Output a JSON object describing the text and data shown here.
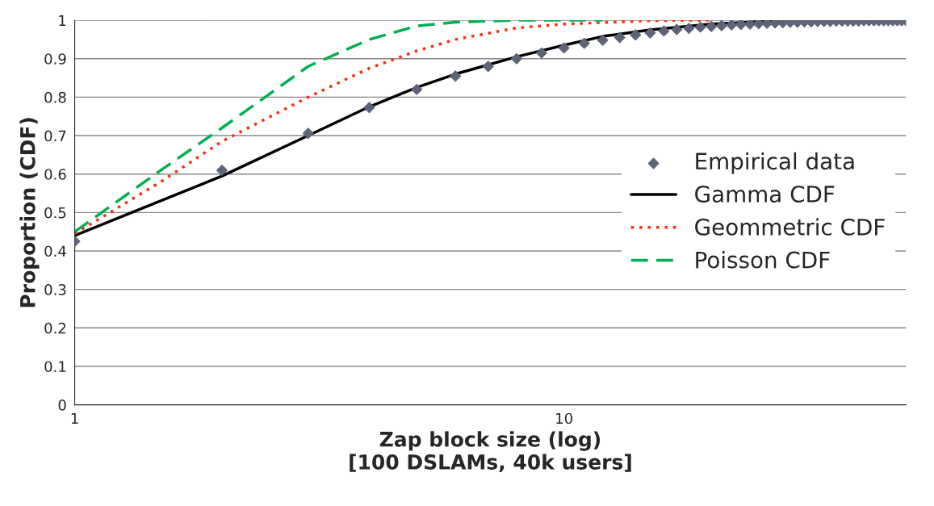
{
  "chart_data": {
    "type": "line",
    "xlabel": "Zap block size (log)\n[100 DSLAMs, 40k users]",
    "ylabel": "Proportion (CDF)",
    "log": "x",
    "xlim": [
      1,
      50
    ],
    "xticks": [
      1,
      10
    ],
    "ylim": [
      0,
      1
    ],
    "yticks": [
      0,
      0.1,
      0.2,
      0.3,
      0.4,
      0.5,
      0.6,
      0.7,
      0.8,
      0.9,
      1
    ],
    "grid": "y",
    "legend": "right",
    "series": [
      {
        "name": "Empirical data",
        "type": "scatter",
        "marker": "diamond",
        "color": "#5f6378",
        "x": [
          1,
          2,
          3,
          4,
          5,
          6,
          7,
          8,
          9,
          10,
          11,
          12,
          13,
          14,
          15,
          16,
          17,
          18,
          19,
          20,
          21,
          22,
          23,
          24,
          25,
          26,
          27,
          28,
          29,
          30,
          31,
          32,
          33,
          34,
          35,
          36,
          37,
          38,
          39,
          40,
          41,
          42,
          43,
          44,
          45,
          46,
          47,
          48,
          49,
          50
        ],
        "values": [
          0.425,
          0.61,
          0.706,
          0.773,
          0.82,
          0.855,
          0.88,
          0.9,
          0.915,
          0.928,
          0.94,
          0.948,
          0.955,
          0.962,
          0.967,
          0.972,
          0.976,
          0.979,
          0.982,
          0.984,
          0.986,
          0.988,
          0.989,
          0.99,
          0.991,
          0.992,
          0.993,
          0.994,
          0.995,
          0.995,
          0.996,
          0.996,
          0.997,
          0.997,
          0.997,
          0.998,
          0.998,
          0.998,
          0.998,
          0.998,
          0.999,
          0.999,
          0.999,
          0.999,
          0.999,
          0.999,
          0.999,
          0.999,
          0.999,
          0.999
        ]
      },
      {
        "name": "Gamma CDF",
        "line_style": "solid",
        "color": "#000000",
        "x": [
          1,
          2,
          3,
          4,
          5,
          6,
          8,
          10,
          12,
          15,
          20,
          25,
          30,
          40
        ],
        "values": [
          0.44,
          0.595,
          0.7,
          0.775,
          0.825,
          0.86,
          0.905,
          0.935,
          0.958,
          0.975,
          0.99,
          0.996,
          0.999,
          1.0
        ]
      },
      {
        "name": "Geommetric CDF",
        "line_style": "dotted",
        "color": "#ff2a0a",
        "x": [
          1,
          1.5,
          2,
          3,
          4,
          5,
          6,
          8,
          10,
          15,
          20
        ],
        "values": [
          0.445,
          0.58,
          0.685,
          0.8,
          0.875,
          0.92,
          0.95,
          0.98,
          0.99,
          0.999,
          1.0
        ]
      },
      {
        "name": "Poisson CDF",
        "line_style": "dashed",
        "color": "#00b050",
        "x": [
          1,
          1.5,
          2,
          3,
          4,
          5,
          6,
          8,
          10,
          12
        ],
        "values": [
          0.45,
          0.61,
          0.72,
          0.88,
          0.95,
          0.985,
          0.995,
          1.0,
          1.0,
          1.0
        ]
      }
    ]
  }
}
